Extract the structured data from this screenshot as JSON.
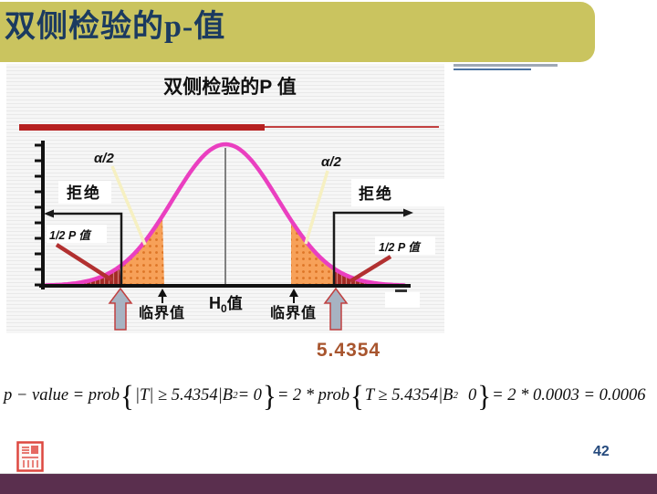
{
  "slide": {
    "title": "双侧检验的p-值",
    "page_number": "42",
    "value_label": "5.4354"
  },
  "figure": {
    "title": "双侧检验的P 值",
    "alpha_label": "α/2",
    "reject_label": "拒绝",
    "half_p_label": "1/2 P 值",
    "critical_label": "临界值",
    "h0_main": "H",
    "h0_sub": "0",
    "h0_suffix": "值"
  },
  "formula": {
    "p1": "p − value = prob",
    "brace_open": "{",
    "p2": "|T| ≥ 5.4354",
    "p3": "|B",
    "sub2": "2",
    "p4": "= 0",
    "brace_close": "}",
    "p5": "= 2 * prob",
    "p6": "T ≥ 5.4354",
    "p7": "0",
    "p8": "= 2 * 0.0003 = 0.0006"
  },
  "colors": {
    "title_bg": "#CAC45F",
    "title_text": "#1B3A60",
    "curve_magenta": "#EA3FC0",
    "alpha_region_orange": "#F7A159",
    "tail_dark_red": "#A32A24",
    "red_bar": "#B62020",
    "block_arrow_fill": "#A7B3C2",
    "block_arrow_outline": "#C04040",
    "pointer_cream": "#F6F0C2",
    "pointer_dark_red": "#B23030",
    "value_text": "#A8552E",
    "page_number_text": "#254A7D",
    "bottom_bar": "#5A2F4E"
  }
}
